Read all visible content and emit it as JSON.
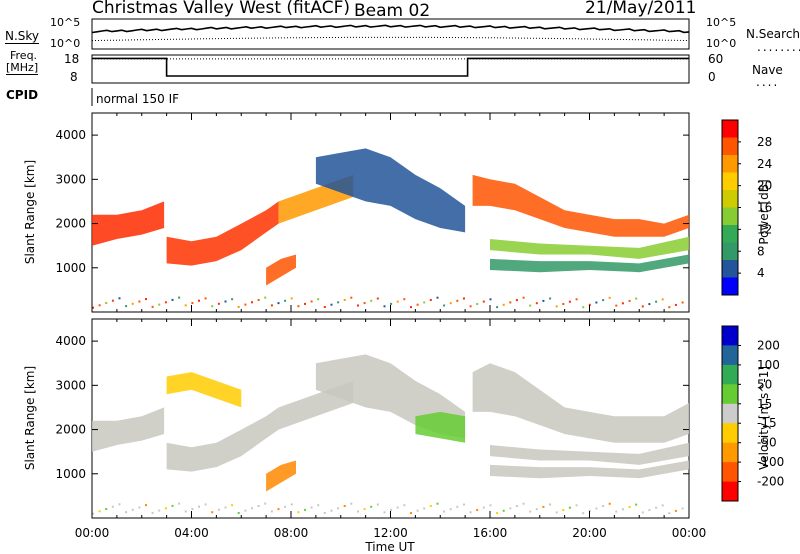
{
  "header": {
    "station": "Christmas Valley West (fitACF)",
    "beam": "Beam 02",
    "date": "21/May/2011"
  },
  "nsky_panel": {
    "left_label": "N.Sky",
    "right_label": "N.Search",
    "ticks": [
      "10^5",
      "10^0"
    ],
    "nsky_level_frac": 0.55,
    "nsearch_level_frac": 0.28
  },
  "freq_panel": {
    "label_line1": "Freq.",
    "label_line2": "[MHz]",
    "left_ticks": [
      "18",
      "8"
    ],
    "right_label": "Nave",
    "right_ticks": [
      "60",
      "0"
    ],
    "freq_segments": [
      {
        "start_hour": 0,
        "end_hour": 3,
        "freq_frac": 0.88
      },
      {
        "start_hour": 3,
        "end_hour": 15.1,
        "freq_frac": 0.25
      },
      {
        "start_hour": 15.1,
        "end_hour": 24,
        "freq_frac": 0.88
      }
    ],
    "nave_level_frac": 0.86
  },
  "cpid": {
    "label": "CPID",
    "program": "normal 150 IF"
  },
  "chart_data": [
    {
      "type": "heatmap",
      "name": "power-panel",
      "ylabel": "Slant Range [km]",
      "xlabel": "",
      "ylim": [
        0,
        4500
      ],
      "y_ticks": [
        1000,
        2000,
        3000,
        4000
      ],
      "colorbar_label": "Power [dB]",
      "colorbar_ticks": [
        "28",
        "24",
        "20",
        "16",
        "12",
        "8",
        "4"
      ],
      "colorbar_colors": [
        "#ff0000",
        "#ff5500",
        "#ff9900",
        "#ffcc00",
        "#cccc00",
        "#88cc33",
        "#33aa55",
        "#339966",
        "#225599",
        "#0000ff"
      ],
      "bands": [
        {
          "x": [
            0,
            1,
            2,
            2.9
          ],
          "lower": [
            1500,
            1650,
            1750,
            1900
          ],
          "upper": [
            2200,
            2200,
            2300,
            2500
          ],
          "color": "#ff2a00"
        },
        {
          "x": [
            3,
            4,
            5,
            6,
            7,
            7.5
          ],
          "lower": [
            1100,
            1050,
            1150,
            1400,
            1800,
            2000
          ],
          "upper": [
            1700,
            1600,
            1700,
            2000,
            2300,
            2500
          ],
          "color": "#ff3300"
        },
        {
          "x": [
            7.5,
            8.5,
            9.5,
            10.5
          ],
          "lower": [
            2000,
            2200,
            2400,
            2600
          ],
          "upper": [
            2500,
            2700,
            2900,
            3100
          ],
          "color": "#ff9900"
        },
        {
          "x": [
            7,
            7.6,
            8.2
          ],
          "lower": [
            600,
            800,
            1000
          ],
          "upper": [
            1000,
            1200,
            1300
          ],
          "color": "#ff5500"
        },
        {
          "x": [
            9,
            10,
            11,
            12,
            13,
            14,
            15
          ],
          "lower": [
            2900,
            2700,
            2500,
            2400,
            2100,
            1900,
            1800
          ],
          "upper": [
            3500,
            3600,
            3700,
            3500,
            3100,
            2800,
            2400
          ],
          "color": "#225599"
        },
        {
          "x": [
            15.3,
            16,
            17,
            18,
            19,
            20,
            21,
            22,
            23,
            24
          ],
          "lower": [
            2400,
            2400,
            2300,
            2100,
            1900,
            1800,
            1700,
            1700,
            1700,
            1900
          ],
          "upper": [
            3100,
            3000,
            2900,
            2600,
            2300,
            2200,
            2100,
            2100,
            2000,
            2200
          ],
          "color": "#ff5500"
        },
        {
          "x": [
            16,
            18,
            20,
            22,
            24
          ],
          "lower": [
            1400,
            1300,
            1300,
            1200,
            1400
          ],
          "upper": [
            1650,
            1550,
            1500,
            1450,
            1700
          ],
          "color": "#88cc33"
        },
        {
          "x": [
            16,
            18,
            20,
            22,
            24
          ],
          "lower": [
            950,
            900,
            950,
            900,
            1100
          ],
          "upper": [
            1200,
            1150,
            1150,
            1100,
            1300
          ],
          "color": "#339966"
        }
      ]
    },
    {
      "type": "heatmap",
      "name": "velocity-panel",
      "ylabel": "Slant Range [km]",
      "xlabel": "Time UT",
      "ylim": [
        0,
        4500
      ],
      "y_ticks": [
        1000,
        2000,
        3000,
        4000
      ],
      "x_ticks": [
        "00:00",
        "04:00",
        "08:00",
        "12:00",
        "16:00",
        "20:00",
        "00:00"
      ],
      "colorbar_label": "Velocity [m s^-1]",
      "colorbar_ticks": [
        "200",
        "100",
        "50",
        "15",
        "-15",
        "-50",
        "-100",
        "-200"
      ],
      "colorbar_colors": [
        "#0000cc",
        "#226699",
        "#33aa55",
        "#66cc33",
        "#cccccc",
        "#ffcc00",
        "#ff9900",
        "#ff5500",
        "#ff0000"
      ],
      "bands": [
        {
          "x": [
            0,
            1,
            2,
            2.9
          ],
          "lower": [
            1500,
            1650,
            1750,
            1900
          ],
          "upper": [
            2200,
            2200,
            2300,
            2500
          ],
          "color": "#c8c8c0"
        },
        {
          "x": [
            3,
            4,
            5,
            6,
            7,
            7.5
          ],
          "lower": [
            1100,
            1050,
            1150,
            1400,
            1800,
            2000
          ],
          "upper": [
            1700,
            1600,
            1700,
            2000,
            2300,
            2500
          ],
          "color": "#c8c8c0"
        },
        {
          "x": [
            7.5,
            8.5,
            9.5,
            10.5
          ],
          "lower": [
            2000,
            2200,
            2400,
            2600
          ],
          "upper": [
            2500,
            2700,
            2900,
            3100
          ],
          "color": "#c8c8c0"
        },
        {
          "x": [
            3,
            4,
            5,
            6
          ],
          "lower": [
            2800,
            2900,
            2700,
            2500
          ],
          "upper": [
            3200,
            3300,
            3100,
            2900
          ],
          "color": "#ffcc00"
        },
        {
          "x": [
            7,
            7.6,
            8.2
          ],
          "lower": [
            600,
            800,
            1000
          ],
          "upper": [
            1000,
            1200,
            1300
          ],
          "color": "#ff8800"
        },
        {
          "x": [
            9,
            10,
            11,
            12,
            13,
            14,
            15
          ],
          "lower": [
            2900,
            2700,
            2500,
            2400,
            2100,
            1900,
            1800
          ],
          "upper": [
            3500,
            3600,
            3700,
            3500,
            3100,
            2800,
            2400
          ],
          "color": "#c8c8c0"
        },
        {
          "x": [
            13,
            14,
            15
          ],
          "lower": [
            1900,
            1800,
            1700
          ],
          "upper": [
            2300,
            2400,
            2300
          ],
          "color": "#66cc33"
        },
        {
          "x": [
            15.3,
            16,
            17,
            18,
            19,
            20,
            21,
            22,
            23,
            24
          ],
          "lower": [
            2400,
            2400,
            2300,
            2100,
            1900,
            1800,
            1700,
            1700,
            1700,
            1900
          ],
          "upper": [
            3300,
            3500,
            3300,
            2900,
            2500,
            2400,
            2300,
            2300,
            2300,
            2600
          ],
          "color": "#c8c8c0"
        },
        {
          "x": [
            16,
            18,
            20,
            22,
            24
          ],
          "lower": [
            1400,
            1300,
            1300,
            1200,
            1400
          ],
          "upper": [
            1650,
            1550,
            1500,
            1450,
            1700
          ],
          "color": "#c8c8c0"
        },
        {
          "x": [
            16,
            18,
            20,
            22,
            24
          ],
          "lower": [
            950,
            900,
            950,
            900,
            1100
          ],
          "upper": [
            1200,
            1150,
            1150,
            1100,
            1300
          ],
          "color": "#c8c8c0"
        }
      ]
    }
  ]
}
